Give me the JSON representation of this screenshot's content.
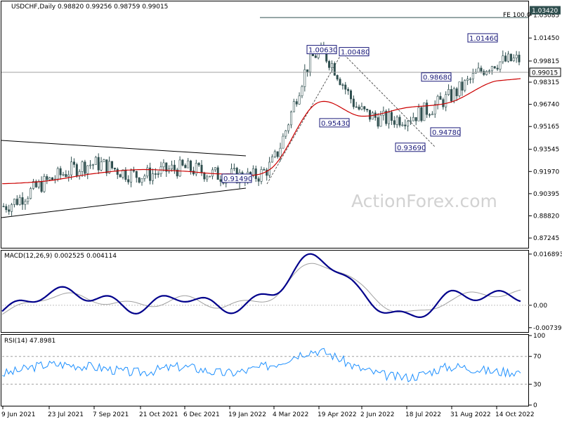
{
  "chart_data": [
    {
      "type": "candlestick",
      "title": "USDCHF,Daily  0.98820 0.99256 0.98759 0.99015",
      "ylim": [
        0.866,
        1.04
      ],
      "y_ticks": [
        1.03085,
        1.0145,
        0.99815,
        0.98315,
        0.9674,
        0.95165,
        0.93545,
        0.9197,
        0.90395,
        0.8882,
        0.87245
      ],
      "y_tick_labels": [
        "1.03085",
        "1.01450",
        "0.99815",
        "0.98315",
        "0.96740",
        "0.95165",
        "0.93545",
        "0.91970",
        "0.90395",
        "0.88820",
        "0.87245"
      ],
      "x_labels": [
        "9 Jun 2021",
        "23 Jul 2021",
        "7 Sep 2021",
        "21 Oct 2021",
        "6 Dec 2021",
        "19 Jan 2022",
        "4 Mar 2022",
        "19 Apr 2022",
        "2 Jun 2022",
        "18 Jul 2022",
        "31 Aug 2022",
        "14 Oct 2022"
      ],
      "current_price": 0.99015,
      "current_price_label": "0.99015",
      "projection": {
        "label": "FE 100.0",
        "value": 1.0342,
        "value_label": "1.03420"
      },
      "annotations": [
        {
          "text": "1.00630",
          "price": 1.0063
        },
        {
          "text": "1.00480",
          "price": 1.0048
        },
        {
          "text": "1.01460",
          "price": 1.0146
        },
        {
          "text": "0.98680",
          "price": 0.9868
        },
        {
          "text": "0.95430",
          "price": 0.9543
        },
        {
          "text": "0.94780",
          "price": 0.9478
        },
        {
          "text": "0.93690",
          "price": 0.9369
        },
        {
          "text": "0.91490",
          "price": 0.9149
        }
      ],
      "series": [
        {
          "name": "USDCHF",
          "type": "line",
          "color": "#2f4f4f",
          "x": [
            "9 Jun 2021",
            "23 Jul 2021",
            "7 Sep 2021",
            "21 Oct 2021",
            "6 Dec 2021",
            "19 Jan 2022",
            "4 Mar 2022",
            "19 Apr 2022",
            "2 Jun 2022",
            "18 Jul 2022",
            "31 Aug 2022",
            "14 Oct 2022"
          ],
          "values": [
            0.895,
            0.913,
            0.925,
            0.917,
            0.922,
            0.917,
            0.925,
            1.003,
            0.963,
            0.958,
            0.973,
            0.997
          ]
        },
        {
          "name": "MA",
          "type": "line",
          "color": "#cc0000",
          "x": [
            "9 Jun 2021",
            "23 Jul 2021",
            "7 Sep 2021",
            "21 Oct 2021",
            "6 Dec 2021",
            "19 Jan 2022",
            "4 Mar 2022",
            "19 Apr 2022",
            "2 Jun 2022",
            "18 Jul 2022",
            "31 Aug 2022",
            "14 Oct 2022"
          ],
          "values": [
            0.911,
            0.913,
            0.918,
            0.921,
            0.92,
            0.918,
            0.922,
            0.968,
            0.959,
            0.965,
            0.969,
            0.984
          ]
        }
      ]
    },
    {
      "type": "line",
      "title": "MACD(12,26,9) 0.002525 0.004114",
      "ylim": [
        -0.0086,
        0.0178
      ],
      "y_ticks": [
        0.016893,
        0.0,
        -0.007393
      ],
      "y_tick_labels": [
        "0.016893",
        "0.00",
        "-0.007393"
      ],
      "series": [
        {
          "name": "MACD",
          "color": "#00008b",
          "x": [
            "9 Jun 2021",
            "23 Jul 2021",
            "7 Sep 2021",
            "21 Oct 2021",
            "6 Dec 2021",
            "19 Jan 2022",
            "4 Mar 2022",
            "19 Apr 2022",
            "2 Jun 2022",
            "18 Jul 2022",
            "31 Aug 2022",
            "14 Oct 2022"
          ],
          "values": [
            -0.002,
            0.004,
            0.003,
            -0.001,
            0.003,
            -0.001,
            0.004,
            0.016,
            0.004,
            -0.004,
            0.003,
            0.003
          ]
        },
        {
          "name": "Signal",
          "color": "#a0a0a0",
          "x": [
            "9 Jun 2021",
            "23 Jul 2021",
            "7 Sep 2021",
            "21 Oct 2021",
            "6 Dec 2021",
            "19 Jan 2022",
            "4 Mar 2022",
            "19 Apr 2022",
            "2 Jun 2022",
            "18 Jul 2022",
            "31 Aug 2022",
            "14 Oct 2022"
          ],
          "values": [
            -0.003,
            0.003,
            0.002,
            0.0,
            0.002,
            0.0,
            0.003,
            0.014,
            0.006,
            -0.003,
            0.002,
            0.004
          ]
        }
      ]
    },
    {
      "type": "line",
      "title": "RSI(14) 47.8981",
      "ylim": [
        0,
        100
      ],
      "y_ticks": [
        100,
        70,
        30,
        0
      ],
      "y_tick_labels": [
        "100",
        "70",
        "30",
        "0"
      ],
      "series": [
        {
          "name": "RSI",
          "color": "#1e90ff",
          "x": [
            "9 Jun 2021",
            "23 Jul 2021",
            "7 Sep 2021",
            "21 Oct 2021",
            "6 Dec 2021",
            "19 Jan 2022",
            "4 Mar 2022",
            "19 Apr 2022",
            "2 Jun 2022",
            "18 Jul 2022",
            "31 Aug 2022",
            "14 Oct 2022"
          ],
          "values": [
            45,
            58,
            55,
            47,
            55,
            46,
            58,
            78,
            52,
            40,
            55,
            48
          ]
        }
      ]
    }
  ],
  "watermark": "ActionForex.com"
}
